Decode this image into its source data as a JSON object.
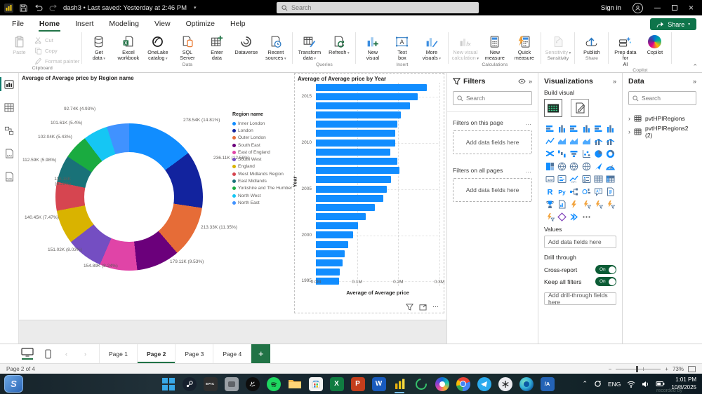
{
  "titlebar": {
    "title": "dash3 • Last saved: Yesterday at 2:46 PM",
    "search_placeholder": "Search",
    "sign_in": "Sign in"
  },
  "ribbon": {
    "share_label": "Share",
    "tabs": [
      {
        "label": "File"
      },
      {
        "label": "Home",
        "active": true
      },
      {
        "label": "Insert"
      },
      {
        "label": "Modeling"
      },
      {
        "label": "View"
      },
      {
        "label": "Optimize"
      },
      {
        "label": "Help"
      }
    ],
    "groups": [
      {
        "label": "Clipboard",
        "buttons": [
          {
            "label": "Paste",
            "icon": "paste",
            "big": true,
            "disabled": true
          },
          {
            "label": "Cut",
            "icon": "cut",
            "small": true,
            "disabled": true
          },
          {
            "label": "Copy",
            "icon": "copy",
            "small": true,
            "disabled": true
          },
          {
            "label": "Format painter",
            "icon": "brush",
            "small": true,
            "disabled": true
          }
        ]
      },
      {
        "label": "Data",
        "buttons": [
          {
            "label": "Get\ndata",
            "icon": "db",
            "big": true,
            "caret": true
          },
          {
            "label": "Excel\nworkbook",
            "icon": "excel",
            "big": true
          },
          {
            "label": "OneLake\ncatalog",
            "icon": "lake",
            "big": true,
            "caret": true
          },
          {
            "label": "SQL\nServer",
            "icon": "sqls",
            "big": true
          },
          {
            "label": "Enter\ndata",
            "icon": "gridplus",
            "big": true
          },
          {
            "label": "Dataverse",
            "icon": "dverse",
            "big": true
          },
          {
            "label": "Recent\nsources",
            "icon": "recent",
            "big": true,
            "caret": true
          }
        ]
      },
      {
        "label": "Queries",
        "buttons": [
          {
            "label": "Transform\ndata",
            "icon": "transform",
            "big": true,
            "caret": true
          },
          {
            "label": "Refresh",
            "icon": "refresh",
            "big": true,
            "caret": true
          }
        ]
      },
      {
        "label": "Insert",
        "buttons": [
          {
            "label": "New\nvisual",
            "icon": "nvis",
            "big": true
          },
          {
            "label": "Text\nbox",
            "icon": "tbox",
            "big": true
          },
          {
            "label": "More\nvisuals",
            "icon": "mvis",
            "big": true,
            "caret": true
          }
        ]
      },
      {
        "label": "Calculations",
        "buttons": [
          {
            "label": "New visual\ncalculation",
            "icon": "fx",
            "big": true,
            "caret": true,
            "disabled": true
          },
          {
            "label": "New\nmeasure",
            "icon": "calc",
            "big": true
          },
          {
            "label": "Quick\nmeasure",
            "icon": "qcalc",
            "big": true
          }
        ]
      },
      {
        "label": "Sensitivity",
        "buttons": [
          {
            "label": "Sensitivity",
            "icon": "sens",
            "big": true,
            "caret": true,
            "disabled": true
          }
        ]
      },
      {
        "label": "Share",
        "buttons": [
          {
            "label": "Publish",
            "icon": "pub",
            "big": true
          }
        ]
      },
      {
        "label": "Copilot",
        "buttons": [
          {
            "label": "Prep data for\nAI",
            "icon": "prep",
            "big": true
          },
          {
            "label": "Copilot",
            "icon": "cop",
            "big": true
          }
        ]
      }
    ]
  },
  "left_nav": {
    "items": [
      {
        "name": "report-view",
        "active": true
      },
      {
        "name": "table-view"
      },
      {
        "name": "model-view"
      },
      {
        "name": "dax-query-view"
      },
      {
        "name": "tmdl-view"
      }
    ]
  },
  "chart_data": [
    {
      "type": "pie",
      "title": "Average of Average price by Region name",
      "legend_title": "Region name",
      "legend_position": "right",
      "slices": [
        {
          "region": "Inner London",
          "label": "278.54K (14.81%)",
          "value_k": 278.54,
          "pct": 14.81,
          "color": "#118DFF"
        },
        {
          "region": "London",
          "label": "236.11K (12.56%)",
          "value_k": 236.11,
          "pct": 12.56,
          "color": "#12239E"
        },
        {
          "region": "Outer London",
          "label": "213.33K (11.35%)",
          "value_k": 213.33,
          "pct": 11.35,
          "color": "#E66C37"
        },
        {
          "region": "South East",
          "label": "179.11K (9.53%)",
          "value_k": 179.11,
          "pct": 9.53,
          "color": "#6B007B"
        },
        {
          "region": "East of England",
          "label": "154.89K (8.24%)",
          "value_k": 154.89,
          "pct": 8.24,
          "color": "#E044A7"
        },
        {
          "region": "South West",
          "label": "151.02K (8.03%)",
          "value_k": 151.02,
          "pct": 8.03,
          "color": "#744EC2"
        },
        {
          "region": "England",
          "label": "140.45K (7.47%)",
          "value_k": 140.45,
          "pct": 7.47,
          "color": "#D9B300"
        },
        {
          "region": "West Midlands Region",
          "label": "118.18K (6.29%)",
          "value_k": 118.18,
          "pct": 6.29,
          "color": "#D64550"
        },
        {
          "region": "East Midlands",
          "label": "112.59K (5.98%)",
          "value_k": 112.59,
          "pct": 5.98,
          "color": "#197278"
        },
        {
          "region": "Yorkshire and The Humber",
          "label": "102.04K (5.43%)",
          "value_k": 102.04,
          "pct": 5.43,
          "color": "#1AAB40"
        },
        {
          "region": "North West",
          "label": "101.61K (5.4%)",
          "value_k": 101.61,
          "pct": 5.4,
          "color": "#15C6F4"
        },
        {
          "region": "North East",
          "label": "92.74K (4.93%)",
          "value_k": 92.74,
          "pct": 4.93,
          "color": "#4092FF"
        }
      ]
    },
    {
      "type": "bar",
      "orientation": "horizontal",
      "title": "Average of Average price by Year",
      "xlabel": "Average of Average price",
      "ylabel": "Year",
      "bar_color": "#118DFF",
      "x_ticks": [
        "0.0M",
        "0.1M",
        "0.2M",
        "0.3M"
      ],
      "xlim": [
        0,
        0.3
      ],
      "y_ticks_shown": [
        "2015",
        "2010",
        "2005",
        "2000",
        "1995"
      ],
      "years": [
        2016,
        2015,
        2014,
        2013,
        2012,
        2011,
        2010,
        2009,
        2008,
        2007,
        2006,
        2005,
        2004,
        2003,
        2002,
        2001,
        2000,
        1999,
        1998,
        1997,
        1996,
        1995
      ],
      "values_m": [
        0.27,
        0.247,
        0.229,
        0.206,
        0.198,
        0.193,
        0.192,
        0.18,
        0.198,
        0.203,
        0.183,
        0.173,
        0.163,
        0.143,
        0.121,
        0.102,
        0.091,
        0.078,
        0.07,
        0.064,
        0.058,
        0.056
      ]
    }
  ],
  "filters": {
    "title": "Filters",
    "search_placeholder": "Search",
    "section1": {
      "label": "Filters on this page",
      "placeholder": "Add data fields here"
    },
    "section2": {
      "label": "Filters on all pages",
      "placeholder": "Add data fields here"
    }
  },
  "visualizations": {
    "title": "Visualizations",
    "build_label": "Build visual",
    "values_label": "Values",
    "values_placeholder": "Add data fields here",
    "drill_label": "Drill through",
    "toggle_on": "On",
    "toggles": [
      {
        "label": "Cross-report",
        "state": "On"
      },
      {
        "label": "Keep all filters",
        "state": "On"
      }
    ],
    "add_drill": "Add drill-through fields here",
    "icons": [
      {
        "n": "stacked-bar-chart",
        "t": "barh"
      },
      {
        "n": "stacked-column-chart",
        "t": "barv"
      },
      {
        "n": "clustered-bar-chart",
        "t": "barh"
      },
      {
        "n": "clustered-column-chart",
        "t": "barv"
      },
      {
        "n": "100-stacked-bar-chart",
        "t": "barh"
      },
      {
        "n": "100-stacked-column-chart",
        "t": "barv"
      },
      {
        "n": "line-chart",
        "t": "line"
      },
      {
        "n": "area-chart",
        "t": "area"
      },
      {
        "n": "stacked-area-chart",
        "t": "area"
      },
      {
        "n": "100-stacked-area-chart",
        "t": "area"
      },
      {
        "n": "line-and-stacked-column-chart",
        "t": "combo"
      },
      {
        "n": "line-and-clustered-column-chart",
        "t": "combo"
      },
      {
        "n": "ribbon-chart",
        "t": "ribbon"
      },
      {
        "n": "waterfall-chart",
        "t": "water"
      },
      {
        "n": "funnel-chart",
        "t": "funnel"
      },
      {
        "n": "scatter-chart",
        "t": "scatter"
      },
      {
        "n": "pie-chart",
        "t": "pie"
      },
      {
        "n": "donut-chart",
        "t": "donutc"
      },
      {
        "n": "treemap",
        "t": "treemap"
      },
      {
        "n": "map",
        "t": "map"
      },
      {
        "n": "filled-map",
        "t": "map"
      },
      {
        "n": "shape-map",
        "t": "map"
      },
      {
        "n": "azure-map",
        "t": "arrow"
      },
      {
        "n": "gauge",
        "t": "gauge"
      },
      {
        "n": "card",
        "t": "t123"
      },
      {
        "n": "multi-row-card",
        "t": "cardm"
      },
      {
        "n": "kpi",
        "t": "kpi"
      },
      {
        "n": "slicer",
        "t": "slicer"
      },
      {
        "n": "table",
        "t": "tablev"
      },
      {
        "n": "matrix",
        "t": "matrix"
      },
      {
        "n": "r-script-visual",
        "t": "tR"
      },
      {
        "n": "python-visual",
        "t": "tPy"
      },
      {
        "n": "decomposition-tree",
        "t": "decomp"
      },
      {
        "n": "key-influencers",
        "t": "influ"
      },
      {
        "n": "q-and-a",
        "t": "qa"
      },
      {
        "n": "smart-narrative",
        "t": "page"
      },
      {
        "n": "metrics",
        "t": "trophy"
      },
      {
        "n": "paginated-report",
        "t": "pagec"
      },
      {
        "n": "power-apps-visual",
        "t": "bolt"
      },
      {
        "n": "power-automate-visual",
        "t": "boltf"
      },
      {
        "n": "ai-visual-1",
        "t": "boltf"
      },
      {
        "n": "ai-visual-2",
        "t": "boltf"
      },
      {
        "n": "ai-visual-3",
        "t": "boltf"
      },
      {
        "n": "arcgis-map",
        "t": "diamond"
      },
      {
        "n": "more-visuals",
        "t": "chevrons"
      },
      {
        "n": "get-more-visuals",
        "t": "dots"
      }
    ]
  },
  "datapane": {
    "title": "Data",
    "search_placeholder": "Search",
    "tables": [
      {
        "label": "pvtHPIRegions"
      },
      {
        "label": "pvtHPIRegions2 (2)"
      }
    ]
  },
  "footer": {
    "pages": [
      {
        "label": "Page 1"
      },
      {
        "label": "Page 2",
        "active": true
      },
      {
        "label": "Page 3"
      },
      {
        "label": "Page 4"
      }
    ],
    "add_page": "+",
    "status": "Page 2 of 4",
    "zoom": "73%"
  },
  "taskbar": {
    "lang": "ENG",
    "time": "1:01 PM",
    "date": "10/8/2025",
    "watermark": "recorded by",
    "corner_app": "lively-wallpaper",
    "icons": [
      {
        "name": "start",
        "kind": "win"
      },
      {
        "name": "steam",
        "kind": "steam"
      },
      {
        "name": "epic-games",
        "kind": "epic"
      },
      {
        "name": "game",
        "kind": "game"
      },
      {
        "name": "razer",
        "kind": "razer"
      },
      {
        "name": "spotify",
        "kind": "spotify"
      },
      {
        "name": "file-explorer",
        "kind": "folder"
      },
      {
        "name": "microsoft-store",
        "kind": "store"
      },
      {
        "name": "excel",
        "kind": "excel"
      },
      {
        "name": "powerpoint",
        "kind": "ppt"
      },
      {
        "name": "word",
        "kind": "word"
      },
      {
        "name": "power-bi",
        "kind": "pbi",
        "active": true
      },
      {
        "name": "loading-app",
        "kind": "ring"
      },
      {
        "name": "copilot",
        "kind": "copilot"
      },
      {
        "name": "chrome",
        "kind": "chrome"
      },
      {
        "name": "telegram",
        "kind": "telegram"
      },
      {
        "name": "chatgpt",
        "kind": "gpt"
      },
      {
        "name": "edge",
        "kind": "edge"
      },
      {
        "name": "app-a",
        "kind": "slasha"
      }
    ]
  }
}
